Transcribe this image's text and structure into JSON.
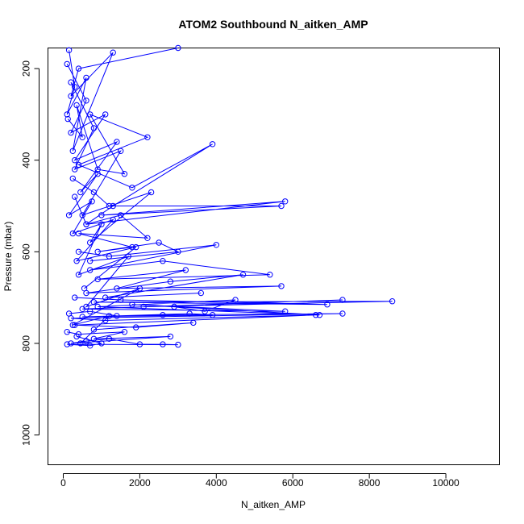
{
  "chart_data": {
    "type": "line",
    "title": "ATOM2 Southbound N_aitken_AMP",
    "xlabel": "N_aitken_AMP",
    "ylabel": "Pressure (mbar)",
    "xlim": [
      -400,
      11400
    ],
    "ylim": [
      1065,
      155
    ],
    "y_reversed": true,
    "grid": false,
    "legend": "none",
    "marker": "open-circle",
    "color": "#0000ff",
    "x_ticks": [
      0,
      2000,
      4000,
      6000,
      8000,
      10000
    ],
    "y_ticks": [
      200,
      400,
      600,
      800,
      1000
    ],
    "series": [
      {
        "x": [
          150,
          300,
          100,
          600,
          250,
          1300,
          200,
          400,
          3000
        ],
        "y": [
          160,
          240,
          300,
          220,
          380,
          165,
          260,
          200,
          155
        ]
      },
      {
        "x": [
          120,
          500,
          350,
          900,
          1600,
          700,
          2200,
          400,
          1800,
          3900,
          1300,
          600,
          300
        ],
        "y": [
          310,
          350,
          280,
          420,
          430,
          300,
          350,
          410,
          460,
          365,
          500,
          540,
          480
        ]
      },
      {
        "x": [
          250,
          800,
          1200,
          5700,
          1000,
          5800,
          600,
          1500,
          2200,
          400,
          1800,
          900,
          2500,
          3000,
          700
        ],
        "y": [
          440,
          470,
          500,
          500,
          520,
          490,
          540,
          520,
          570,
          560,
          590,
          600,
          580,
          600,
          620
        ]
      },
      {
        "x": [
          400,
          1200,
          4000,
          700,
          2600,
          5400,
          900,
          3200,
          1400,
          5700,
          600,
          2800,
          4700,
          1100,
          3600
        ],
        "y": [
          600,
          610,
          585,
          640,
          620,
          650,
          660,
          640,
          680,
          675,
          690,
          665,
          650,
          700,
          690
        ]
      },
      {
        "x": [
          300,
          1500,
          6900,
          800,
          8600,
          2100,
          7300,
          500,
          5800,
          1800,
          6700,
          900,
          4500,
          3700,
          2900
        ],
        "y": [
          700,
          705,
          715,
          710,
          708,
          720,
          705,
          725,
          730,
          715,
          738,
          720,
          705,
          730,
          720
        ]
      },
      {
        "x": [
          150,
          700,
          1400,
          3300,
          3900,
          500,
          2600,
          7300,
          200,
          1100,
          6600,
          300,
          1900,
          3400,
          800
        ],
        "y": [
          735,
          730,
          740,
          735,
          738,
          742,
          738,
          735,
          745,
          750,
          738,
          760,
          765,
          755,
          770
        ]
      },
      {
        "x": [
          100,
          400,
          1600,
          800,
          2800,
          200,
          600,
          1200,
          2000,
          2600,
          3000,
          100,
          700,
          1000,
          350
        ],
        "y": [
          775,
          780,
          775,
          790,
          785,
          800,
          795,
          790,
          802,
          802,
          803,
          802,
          805,
          800,
          785
        ]
      },
      {
        "x": [
          200,
          800,
          300,
          1500,
          500,
          2300,
          700,
          1000,
          400,
          1700,
          600,
          2000,
          250,
          1200,
          450
        ],
        "y": [
          230,
          330,
          420,
          380,
          520,
          470,
          580,
          540,
          650,
          610,
          720,
          680,
          760,
          740,
          800
        ]
      },
      {
        "x": [
          100,
          600,
          200,
          1100,
          300,
          1400,
          450,
          900,
          150,
          750,
          250,
          1300,
          350,
          1900,
          550
        ],
        "y": [
          190,
          270,
          340,
          300,
          400,
          360,
          470,
          430,
          520,
          490,
          560,
          530,
          620,
          590,
          680
        ]
      }
    ]
  }
}
